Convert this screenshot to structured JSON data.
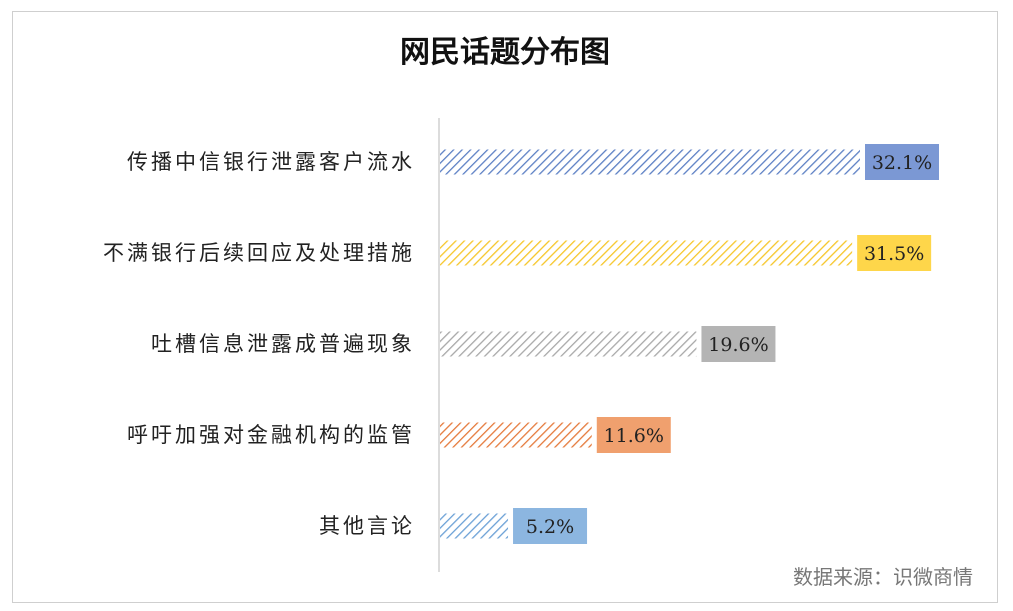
{
  "chart_data": {
    "type": "bar",
    "orientation": "horizontal",
    "title": "网民话题分布图",
    "categories": [
      "传播中信银行泄露客户流水",
      "不满银行后续回应及处理措施",
      "吐槽信息泄露成普遍现象",
      "呼吁加强对金融机构的监管",
      "其他言论"
    ],
    "values": [
      32.1,
      31.5,
      19.6,
      11.6,
      5.2
    ],
    "value_labels": [
      "32.1%",
      "31.5%",
      "19.6%",
      "11.6%",
      "5.2%"
    ],
    "xlim": [
      0,
      32.1
    ],
    "grid": false,
    "legend": "none",
    "bar_colors": [
      "#5b7fc4",
      "#f6c629",
      "#a8a8a8",
      "#e5793a",
      "#6aa0d6"
    ],
    "label_box_colors": [
      "#7b98d4",
      "#fed64a",
      "#b4b4b4",
      "#f0a06e",
      "#8cb6e0"
    ],
    "pattern": "diagonal-hatch"
  },
  "source": "数据来源：识微商情"
}
